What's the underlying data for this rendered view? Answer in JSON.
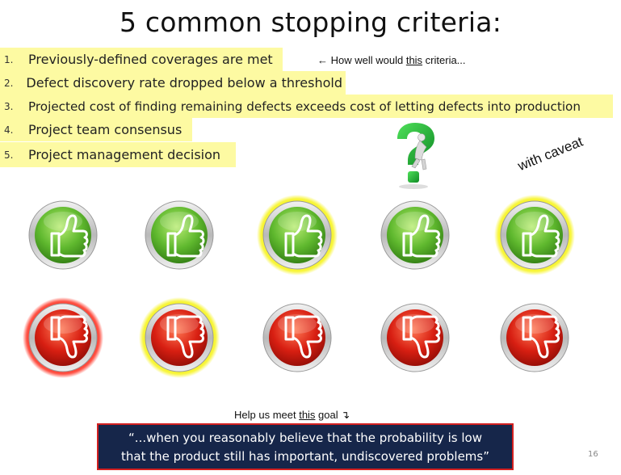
{
  "title": "5 common stopping criteria:",
  "criteria": [
    {
      "num": "1.",
      "text": "Previously-defined coverages are met"
    },
    {
      "num": "2.",
      "text": "Defect discovery rate dropped below a threshold"
    },
    {
      "num": "3.",
      "text": "Projected cost of finding remaining defects exceeds cost of letting defects into production"
    },
    {
      "num": "4.",
      "text": "Project team consensus"
    },
    {
      "num": "5.",
      "text": "Project management decision"
    }
  ],
  "note": {
    "prefix": "← How well would ",
    "emph": "this",
    "suffix": " criteria..."
  },
  "caveat": "with caveat",
  "icons": {
    "question": "question-mark-figure-icon",
    "up": "thumbs-up-icon",
    "down": "thumbs-down-icon"
  },
  "colors": {
    "highlight": "#fdfaa2",
    "green": "#5fb82e",
    "red": "#d81f12",
    "yellow_ring": "#f2ee1a",
    "red_ring": "#ff2a1a",
    "quote_bg": "#16264a",
    "quote_border": "#d32020"
  },
  "thumbs_up": [
    {
      "ring": "none"
    },
    {
      "ring": "none"
    },
    {
      "ring": "yellow"
    },
    {
      "ring": "none"
    },
    {
      "ring": "yellow"
    }
  ],
  "thumbs_down": [
    {
      "ring": "red"
    },
    {
      "ring": "yellow"
    },
    {
      "ring": "none"
    },
    {
      "ring": "none"
    },
    {
      "ring": "none"
    }
  ],
  "goal": {
    "prefix": "Help us meet ",
    "emph": "this",
    "suffix": " goal ↴"
  },
  "quote": {
    "line1": "“...when you reasonably believe that the probability is low",
    "line2": "that the product still has important, undiscovered problems”"
  },
  "page_number": "16"
}
